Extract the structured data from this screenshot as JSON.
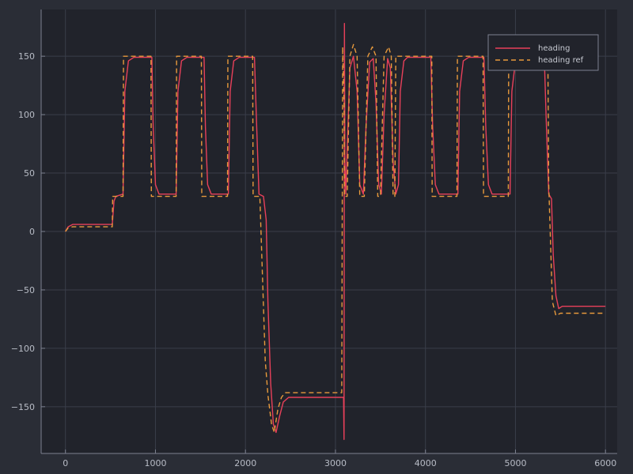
{
  "chart_data": {
    "type": "line",
    "title": "",
    "xlabel": "",
    "ylabel": "",
    "xlim": [
      -270,
      6130
    ],
    "ylim": [
      -190,
      190
    ],
    "x_ticks": [
      0,
      1000,
      2000,
      3000,
      4000,
      5000,
      6000
    ],
    "y_ticks": [
      -150,
      -100,
      -50,
      0,
      50,
      100,
      150
    ],
    "x_tick_labels": [
      "0",
      "1000",
      "2000",
      "3000",
      "4000",
      "5000",
      "6000"
    ],
    "y_tick_labels": [
      "−150",
      "−100",
      "−50",
      "0",
      "50",
      "100",
      "150"
    ],
    "grid": true,
    "legend_position": "top-right",
    "colors": {
      "background": "#2a2d36",
      "plot_background": "#21232b",
      "axis": "#7d8190",
      "grid": "#3a3e4a",
      "heading": "#e8405a",
      "heading_ref": "#e89a3c"
    },
    "series": [
      {
        "name": "heading",
        "style": "solid",
        "points": [
          [
            0,
            0
          ],
          [
            30,
            4
          ],
          [
            80,
            6
          ],
          [
            520,
            6
          ],
          [
            540,
            26
          ],
          [
            560,
            30
          ],
          [
            640,
            32
          ],
          [
            660,
            120
          ],
          [
            700,
            146
          ],
          [
            760,
            149
          ],
          [
            960,
            149
          ],
          [
            975,
            90
          ],
          [
            1000,
            40
          ],
          [
            1040,
            32
          ],
          [
            1230,
            32
          ],
          [
            1250,
            120
          ],
          [
            1290,
            146
          ],
          [
            1350,
            149
          ],
          [
            1540,
            149
          ],
          [
            1555,
            90
          ],
          [
            1580,
            40
          ],
          [
            1620,
            32
          ],
          [
            1810,
            32
          ],
          [
            1830,
            120
          ],
          [
            1870,
            146
          ],
          [
            1930,
            149
          ],
          [
            2100,
            149
          ],
          [
            2120,
            100
          ],
          [
            2150,
            32
          ],
          [
            2200,
            30
          ],
          [
            2230,
            10
          ],
          [
            2250,
            -60
          ],
          [
            2280,
            -130
          ],
          [
            2310,
            -165
          ],
          [
            2340,
            -172
          ],
          [
            2380,
            -158
          ],
          [
            2420,
            -146
          ],
          [
            2480,
            -142
          ],
          [
            3090,
            -142
          ],
          [
            3095,
            -178
          ],
          [
            3100,
            178
          ],
          [
            3105,
            60
          ],
          [
            3115,
            32
          ],
          [
            3130,
            70
          ],
          [
            3160,
            140
          ],
          [
            3200,
            150
          ],
          [
            3240,
            120
          ],
          [
            3270,
            40
          ],
          [
            3310,
            32
          ],
          [
            3340,
            90
          ],
          [
            3380,
            145
          ],
          [
            3420,
            148
          ],
          [
            3450,
            110
          ],
          [
            3480,
            40
          ],
          [
            3510,
            32
          ],
          [
            3540,
            100
          ],
          [
            3580,
            148
          ],
          [
            3610,
            140
          ],
          [
            3640,
            60
          ],
          [
            3670,
            32
          ],
          [
            3700,
            40
          ],
          [
            3720,
            120
          ],
          [
            3760,
            146
          ],
          [
            3800,
            149
          ],
          [
            4060,
            149
          ],
          [
            4080,
            90
          ],
          [
            4110,
            40
          ],
          [
            4150,
            32
          ],
          [
            4360,
            32
          ],
          [
            4380,
            120
          ],
          [
            4420,
            146
          ],
          [
            4480,
            149
          ],
          [
            4650,
            149
          ],
          [
            4670,
            90
          ],
          [
            4700,
            40
          ],
          [
            4740,
            32
          ],
          [
            4940,
            32
          ],
          [
            4960,
            120
          ],
          [
            5000,
            146
          ],
          [
            5060,
            149
          ],
          [
            5320,
            149
          ],
          [
            5340,
            100
          ],
          [
            5370,
            32
          ],
          [
            5400,
            28
          ],
          [
            5420,
            -20
          ],
          [
            5450,
            -55
          ],
          [
            5480,
            -66
          ],
          [
            5520,
            -64
          ],
          [
            6000,
            -64
          ]
        ]
      },
      {
        "name": "heading ref",
        "style": "dashed",
        "points": [
          [
            0,
            0
          ],
          [
            30,
            3
          ],
          [
            80,
            4
          ],
          [
            520,
            4
          ],
          [
            525,
            30
          ],
          [
            640,
            30
          ],
          [
            645,
            150
          ],
          [
            950,
            150
          ],
          [
            955,
            30
          ],
          [
            1230,
            30
          ],
          [
            1235,
            150
          ],
          [
            1510,
            150
          ],
          [
            1515,
            30
          ],
          [
            1800,
            30
          ],
          [
            1805,
            150
          ],
          [
            2080,
            150
          ],
          [
            2085,
            30
          ],
          [
            2160,
            30
          ],
          [
            2190,
            -40
          ],
          [
            2220,
            -110
          ],
          [
            2250,
            -140
          ],
          [
            2290,
            -165
          ],
          [
            2320,
            -172
          ],
          [
            2360,
            -152
          ],
          [
            2400,
            -142
          ],
          [
            2440,
            -138
          ],
          [
            3070,
            -138
          ],
          [
            3080,
            158
          ],
          [
            3095,
            110
          ],
          [
            3100,
            30
          ],
          [
            3130,
            30
          ],
          [
            3160,
            150
          ],
          [
            3200,
            160
          ],
          [
            3240,
            150
          ],
          [
            3270,
            30
          ],
          [
            3320,
            30
          ],
          [
            3360,
            150
          ],
          [
            3410,
            158
          ],
          [
            3450,
            150
          ],
          [
            3470,
            30
          ],
          [
            3500,
            30
          ],
          [
            3540,
            150
          ],
          [
            3590,
            158
          ],
          [
            3620,
            150
          ],
          [
            3640,
            30
          ],
          [
            3660,
            30
          ],
          [
            3670,
            150
          ],
          [
            4070,
            150
          ],
          [
            4075,
            30
          ],
          [
            4350,
            30
          ],
          [
            4355,
            150
          ],
          [
            4640,
            150
          ],
          [
            4645,
            30
          ],
          [
            4920,
            30
          ],
          [
            4925,
            150
          ],
          [
            5360,
            150
          ],
          [
            5370,
            40
          ],
          [
            5410,
            -60
          ],
          [
            5450,
            -72
          ],
          [
            5500,
            -70
          ],
          [
            6000,
            -70
          ]
        ]
      }
    ]
  }
}
